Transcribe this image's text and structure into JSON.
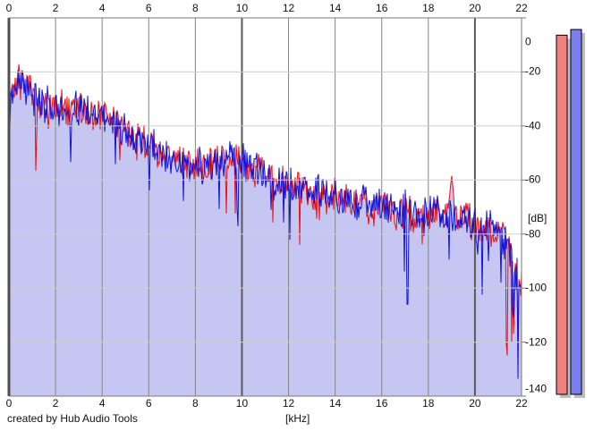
{
  "footer": {
    "credit": "created by Hub Audio Tools"
  },
  "colors": {
    "background": "#ffffff",
    "fill_area": "#c6c6f2",
    "grid_vertical": "#848484",
    "grid_vertical_major": "#5a5a5a",
    "grid_horizontal": "#cdcdd0",
    "plot_border": "#7a7a7a",
    "left_border": "#4f4f4f",
    "text": "#111111"
  },
  "chart_data": {
    "type": "line",
    "title": "",
    "xlabel": "[kHz]",
    "ylabel": "[dB]",
    "xlim": [
      0,
      22
    ],
    "ylim": [
      -140,
      0
    ],
    "grid": true,
    "x_tick_labels": [
      "0",
      "2",
      "4",
      "6",
      "8",
      "10",
      "12",
      "14",
      "16",
      "18",
      "20",
      "22"
    ],
    "y_tick_labels": [
      "0",
      "-20",
      "-40",
      "-60",
      "-80",
      "-100",
      "-120",
      "-140"
    ],
    "x_ticks_khz": [
      0,
      2,
      4,
      6,
      8,
      10,
      12,
      14,
      16,
      18,
      20,
      22
    ],
    "y_ticks_db": [
      0,
      -20,
      -40,
      -60,
      -80,
      -100,
      -120,
      -140
    ],
    "envelope_x_khz": [
      0,
      0.5,
      1,
      1.5,
      2,
      2.5,
      3,
      3.5,
      4,
      4.5,
      5,
      5.5,
      6,
      6.5,
      7,
      7.5,
      8,
      8.5,
      9,
      9.5,
      10,
      10.5,
      11,
      11.5,
      12,
      12.5,
      13,
      13.5,
      14,
      14.5,
      15,
      15.5,
      16,
      16.5,
      17,
      17.5,
      18,
      18.5,
      19,
      19.5,
      20,
      20.5,
      21,
      21.5,
      22
    ],
    "series": [
      {
        "name": "left-channel",
        "color": "#ee0f0f",
        "envelope_db": [
          -30,
          -22,
          -30,
          -32,
          -33,
          -34,
          -34,
          -35,
          -36,
          -39,
          -42,
          -45,
          -47,
          -50,
          -52,
          -54,
          -55,
          -55,
          -54,
          -52,
          -53,
          -56,
          -59,
          -61,
          -62,
          -63,
          -64,
          -65,
          -66,
          -67,
          -68,
          -69,
          -70,
          -71,
          -71,
          -72,
          -72,
          -73,
          -73,
          -74,
          -76,
          -77,
          -79,
          -86,
          -100
        ],
        "peak_marker": {
          "khz": 19.0,
          "db": -58
        },
        "seed": 7
      },
      {
        "name": "right-channel",
        "color": "#1212d8",
        "envelope_db": [
          -30,
          -22,
          -30,
          -32,
          -33,
          -34,
          -34,
          -35,
          -36,
          -39,
          -42,
          -45,
          -47,
          -50,
          -52,
          -54,
          -55,
          -55,
          -54,
          -52,
          -53,
          -56,
          -59,
          -61,
          -62,
          -63,
          -64,
          -65,
          -66,
          -67,
          -68,
          -69,
          -70,
          -71,
          -71,
          -72,
          -72,
          -73,
          -73,
          -74,
          -76,
          -77,
          -79,
          -86,
          -100
        ],
        "dip_marker": {
          "khz": 17.1,
          "db": -106
        },
        "seed": 13
      }
    ],
    "noise_db_typical": 6,
    "legend": []
  },
  "meters": {
    "left": {
      "name": "level-meter-left",
      "color": "#ef8181",
      "level_db": -6.4
    },
    "right": {
      "name": "level-meter-right",
      "color": "#7d7df2",
      "level_db": -4.3
    },
    "shadow_color": "#bdbdbd",
    "border_color": "#000000",
    "bottom_db": -140
  }
}
